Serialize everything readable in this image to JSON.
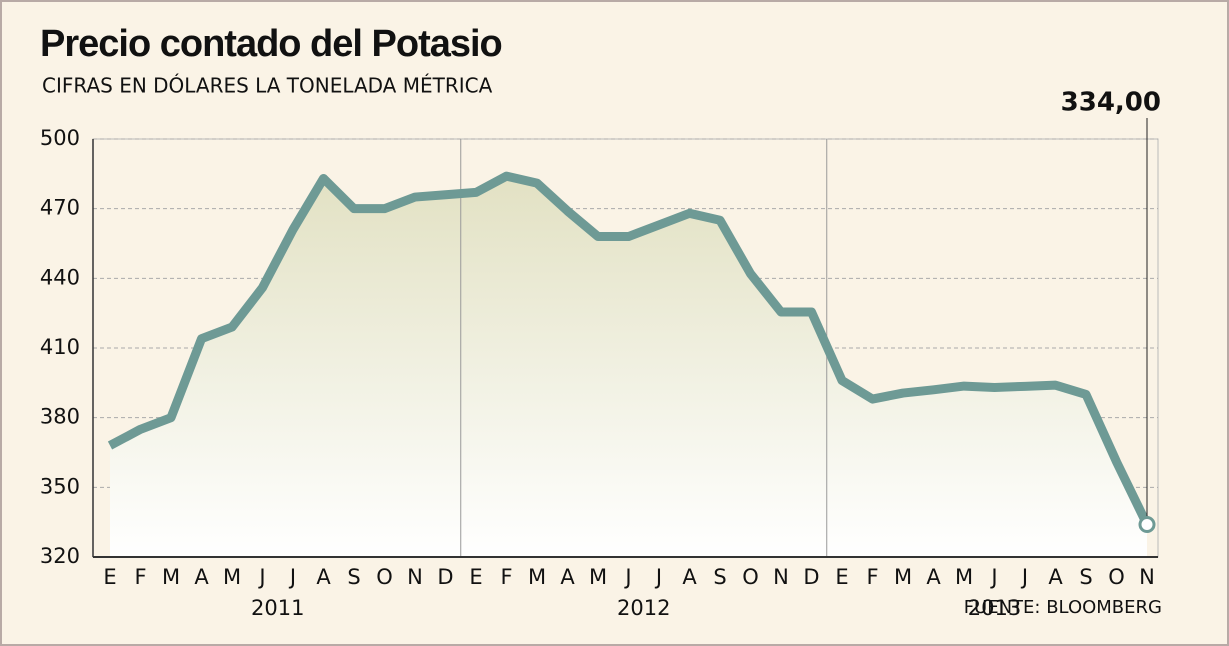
{
  "chart_data": {
    "type": "line",
    "title": "Precio contado del Potasio",
    "subtitle": "CIFRAS EN DÓLARES LA TONELADA MÉTRICA",
    "source": "FUENTE: BLOOMBERG",
    "groups": [
      {
        "name": "2011",
        "categories": [
          "E",
          "F",
          "M",
          "A",
          "M",
          "J",
          "J",
          "A",
          "S",
          "O",
          "N",
          "D"
        ]
      },
      {
        "name": "2012",
        "categories": [
          "E",
          "F",
          "M",
          "A",
          "M",
          "J",
          "J",
          "A",
          "S",
          "O",
          "N",
          "D"
        ]
      },
      {
        "name": "2013",
        "categories": [
          "E",
          "F",
          "M",
          "A",
          "M",
          "J",
          "J",
          "A",
          "S",
          "O",
          "N"
        ]
      }
    ],
    "values": [
      368,
      375,
      380,
      414,
      419,
      436,
      461,
      483,
      470,
      470,
      475,
      476,
      477,
      484,
      481,
      469,
      458,
      458,
      463,
      468,
      465,
      442,
      425.5,
      425.5,
      396,
      388,
      390.6,
      392,
      393.6,
      393,
      393.5,
      394,
      390,
      361,
      334
    ],
    "value_labels": [
      null,
      null,
      null,
      null,
      null,
      null,
      null,
      null,
      null,
      null,
      null,
      null,
      null,
      null,
      null,
      null,
      null,
      null,
      null,
      null,
      null,
      null,
      null,
      null,
      null,
      null,
      null,
      null,
      null,
      null,
      null,
      null,
      null,
      null,
      "334,00"
    ],
    "color": "#6e9a95",
    "ylim": [
      320,
      500
    ],
    "yticks": [
      320,
      350,
      380,
      410,
      440,
      470,
      500
    ],
    "grid": true
  }
}
